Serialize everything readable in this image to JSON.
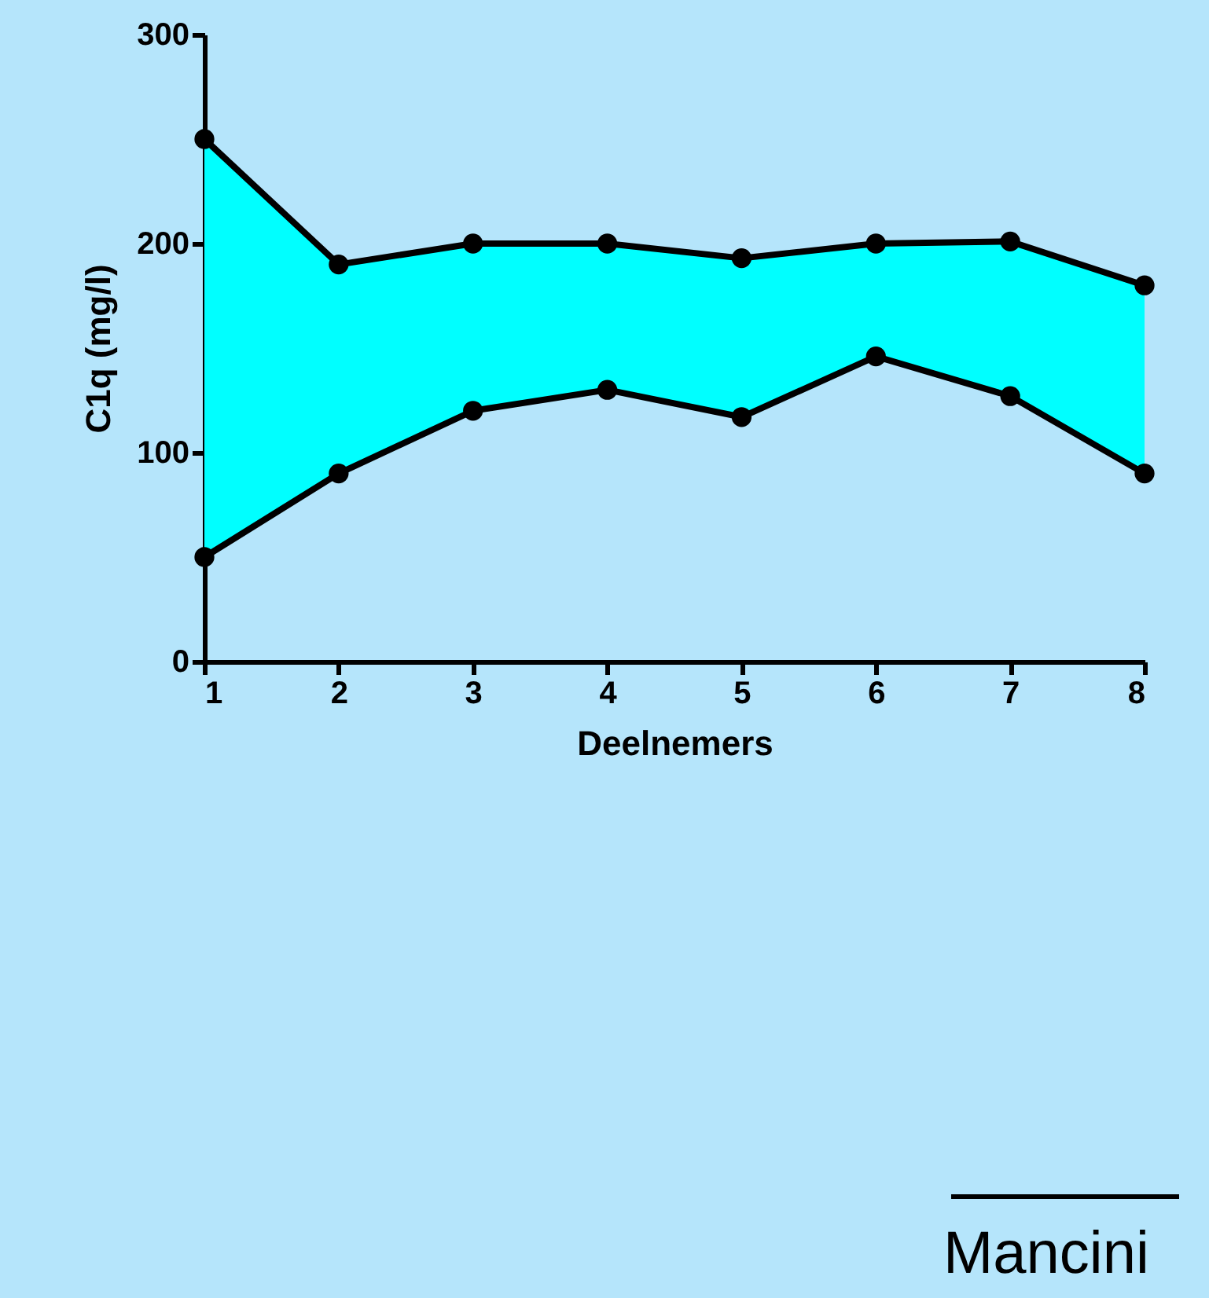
{
  "chart_data": {
    "type": "line",
    "xlabel": "Deelnemers",
    "ylabel": "C1q (mg/l)",
    "x": [
      1,
      2,
      3,
      4,
      5,
      6,
      7,
      8
    ],
    "series": [
      {
        "color": "#000000",
        "values": [
          250,
          190,
          200,
          200,
          193,
          200,
          201,
          180
        ],
        "lower": [
          50,
          90,
          120,
          130,
          117,
          146,
          127,
          90
        ],
        "upper": [
          250,
          190,
          200,
          200,
          193,
          200,
          201,
          180
        ]
      },
      {
        "color": "#000000",
        "values": [
          50,
          90,
          120,
          130,
          117,
          146,
          127,
          90
        ]
      }
    ],
    "xlim": [
      1,
      8
    ],
    "xticks": [
      1,
      2,
      3,
      4,
      5,
      6,
      7,
      8
    ],
    "ylim": [
      0,
      300
    ],
    "yticks": [
      0,
      100,
      200,
      300
    ],
    "grid": false,
    "marker": "circle",
    "line_style": "solid",
    "annotations": [
      "Mancini"
    ]
  }
}
